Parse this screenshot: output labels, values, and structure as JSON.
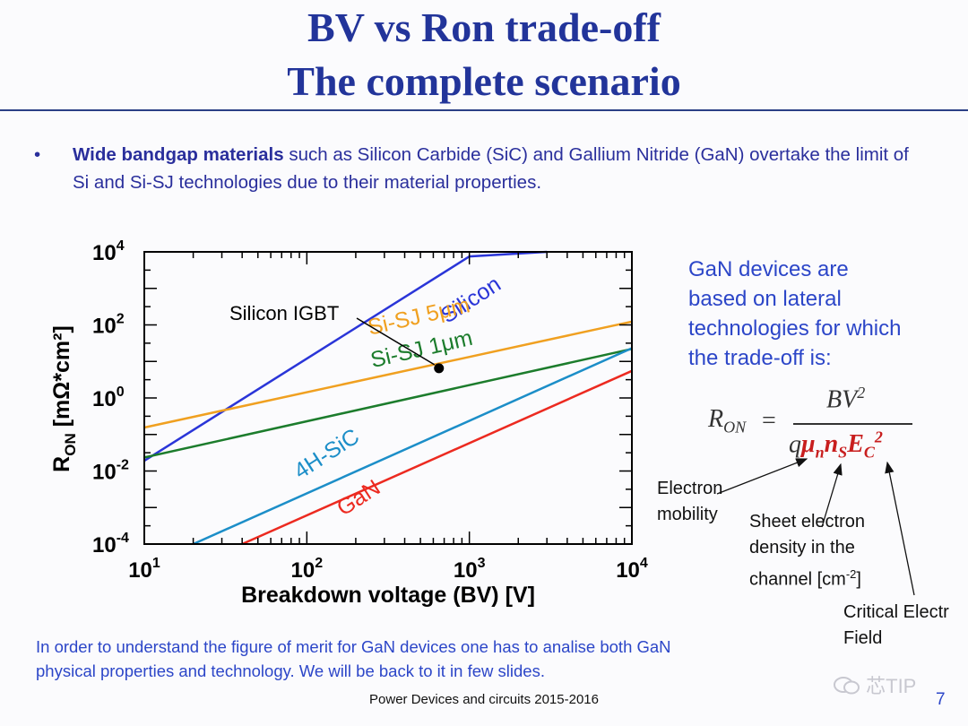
{
  "slide": {
    "title_line1": "BV vs Ron trade-off",
    "title_line2": "The complete scenario",
    "bullet_marker": "•",
    "bullet_bold": "Wide bandgap materials",
    "bullet_rest": " such as Silicon Carbide (SiC) and Gallium Nitride (GaN) overtake the limit of Si and Si-SJ technologies due to their material properties.",
    "note_lines": [
      "GaN  devices are",
      "based on lateral",
      "technologies for which",
      "the trade-off is:"
    ],
    "formula": {
      "lhs": "R",
      "lhs_sub": "ON",
      "equals": "=",
      "numerator": "BV",
      "numerator_sup": "2",
      "den_q": "q",
      "den_mu": "μ",
      "den_mu_sub": "n",
      "den_n": "n",
      "den_n_sub": "S",
      "den_e": "E",
      "den_e_sub": "C",
      "den_e_sup": "2"
    },
    "annotations": {
      "electron_mobility": [
        "Electron",
        "mobility"
      ],
      "sheet_density": [
        "Sheet electron",
        "density in the",
        "channel [cm"
      ],
      "sheet_density_sup": "-2",
      "sheet_density_end": "]",
      "critical_field": [
        "Critical Electr",
        "Field"
      ]
    },
    "footer_note_lines": [
      "In order to understand the figure of merit for GaN devices one has to analise both GaN",
      "physical properties and technology. We will be back to it in few slides."
    ],
    "footer": "Power Devices and circuits 2015-2016",
    "page_number": "7",
    "watermark": "芯TIP",
    "colors": {
      "title": "#22349a",
      "text_blue": "#2c46c8",
      "formula_red": "#c81e1e"
    }
  },
  "chart_data": {
    "type": "line",
    "xlabel": "Breakdown voltage (BV) [V]",
    "ylabel": "R",
    "ylabel_sub": "ON",
    "ylabel_unit": " [mΩ*cm²]",
    "xscale": "log",
    "yscale": "log",
    "xlim": [
      10,
      10000
    ],
    "ylim": [
      0.0001,
      10000
    ],
    "x_ticks": [
      10,
      100,
      1000,
      10000
    ],
    "x_tick_labels": [
      {
        "base": "10",
        "exp": "1"
      },
      {
        "base": "10",
        "exp": "2"
      },
      {
        "base": "10",
        "exp": "3"
      },
      {
        "base": "10",
        "exp": "4"
      }
    ],
    "y_ticks": [
      0.0001,
      0.01,
      1,
      100,
      10000
    ],
    "y_tick_labels": [
      {
        "base": "10",
        "exp": "-4"
      },
      {
        "base": "10",
        "exp": "-2"
      },
      {
        "base": "10",
        "exp": "0"
      },
      {
        "base": "10",
        "exp": "2"
      },
      {
        "base": "10",
        "exp": "4"
      }
    ],
    "grid": false,
    "series": [
      {
        "name": "Silicon",
        "color": "#2a35d8",
        "x": [
          10,
          1000,
          3000
        ],
        "y": [
          0.019,
          7500,
          10000
        ],
        "label_rotation": -33
      },
      {
        "name": "Si-SJ 5μm",
        "color": "#f0a020",
        "x": [
          10,
          10000
        ],
        "y": [
          0.155,
          123
        ],
        "label_rotation": -13
      },
      {
        "name": "Si-SJ 1μm",
        "color": "#1c7c2c",
        "x": [
          10,
          10000
        ],
        "y": [
          0.0235,
          22
        ],
        "label_rotation": -13
      },
      {
        "name": "4H-SiC",
        "color": "#1c8ec8",
        "x": [
          20,
          10000
        ],
        "y": [
          0.0001,
          23
        ],
        "label_rotation": -33
      },
      {
        "name": "GaN",
        "color": "#ec2a20",
        "x": [
          40,
          10000
        ],
        "y": [
          0.0001,
          5.5
        ],
        "label_rotation": -33
      }
    ],
    "points": [
      {
        "name": "Silicon IGBT",
        "x": 650,
        "y": 6.5
      }
    ]
  }
}
